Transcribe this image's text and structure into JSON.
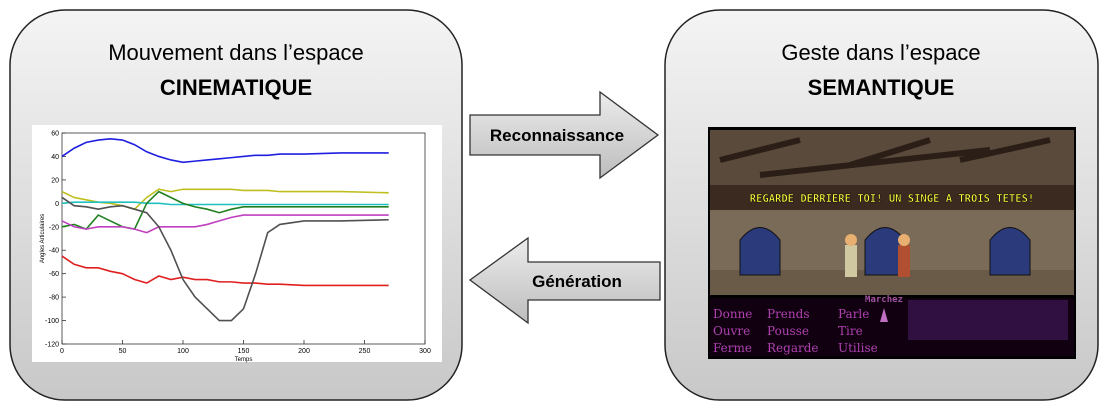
{
  "left_box": {
    "title": "Mouvement dans l’espace",
    "subtitle": "CINEMATIQUE"
  },
  "right_box": {
    "title": "Geste dans l’espace",
    "subtitle": "SEMANTIQUE"
  },
  "arrows": {
    "forward": "Reconnaissance",
    "backward": "Génération"
  },
  "game": {
    "caption": "REGARDE DERRIERE TOI! UN SINGE A TROIS TETES!",
    "walk": "Marchez",
    "verbs": [
      [
        "Donne",
        "Prends",
        "Parle"
      ],
      [
        "Ouvre",
        "Pousse",
        "Tire"
      ],
      [
        "Ferme",
        "Regarde",
        "Utilise"
      ]
    ]
  },
  "chart_data": {
    "type": "line",
    "x_label": "Temps",
    "y_label": "Angles Articulaires",
    "x": [
      0,
      10,
      20,
      30,
      40,
      50,
      60,
      70,
      80,
      90,
      100,
      110,
      120,
      130,
      140,
      150,
      160,
      170,
      180,
      200,
      230,
      270
    ],
    "series": [
      {
        "color": "#1f1fe0",
        "values": [
          40,
          47,
          52,
          54,
          55,
          54,
          50,
          44,
          40,
          37,
          35,
          36,
          37,
          38,
          39,
          40,
          41,
          41,
          42,
          42,
          43,
          43
        ]
      },
      {
        "color": "#bfbf20",
        "values": [
          10,
          5,
          3,
          1,
          0,
          -2,
          -5,
          5,
          12,
          10,
          12,
          12,
          12,
          12,
          12,
          11,
          11,
          11,
          10,
          10,
          10,
          9
        ]
      },
      {
        "color": "#20c0c0",
        "values": [
          0,
          1,
          1,
          1,
          1,
          1,
          1,
          0,
          0,
          -1,
          -1,
          -1,
          -1,
          -1,
          -1,
          -1,
          -1,
          -1,
          -1,
          -1,
          -1,
          -1
        ]
      },
      {
        "color": "#208020",
        "values": [
          -20,
          -18,
          -22,
          -10,
          -15,
          -20,
          -22,
          0,
          10,
          5,
          0,
          -3,
          -5,
          -8,
          -5,
          -3,
          -3,
          -3,
          -3,
          -3,
          -3,
          -3
        ]
      },
      {
        "color": "#c040c0",
        "values": [
          -15,
          -20,
          -22,
          -20,
          -20,
          -20,
          -22,
          -25,
          -20,
          -20,
          -20,
          -20,
          -18,
          -15,
          -12,
          -10,
          -10,
          -10,
          -10,
          -10,
          -10,
          -10
        ]
      },
      {
        "color": "#e02020",
        "values": [
          -45,
          -52,
          -55,
          -55,
          -58,
          -60,
          -65,
          -68,
          -62,
          -65,
          -63,
          -65,
          -65,
          -67,
          -67,
          -68,
          -68,
          -69,
          -69,
          -70,
          -70,
          -70
        ]
      },
      {
        "color": "#505050",
        "values": [
          5,
          -2,
          -3,
          -5,
          -3,
          -2,
          -5,
          -8,
          -20,
          -40,
          -65,
          -80,
          -90,
          -100,
          -100,
          -90,
          -60,
          -25,
          -18,
          -15,
          -15,
          -14
        ]
      }
    ],
    "xlim": [
      0,
      300
    ],
    "xticks": [
      0,
      50,
      100,
      150,
      200,
      250,
      300
    ],
    "ylim": [
      -120,
      60
    ],
    "yticks": [
      -120,
      -100,
      -80,
      -60,
      -40,
      -20,
      0,
      20,
      40,
      60
    ]
  }
}
